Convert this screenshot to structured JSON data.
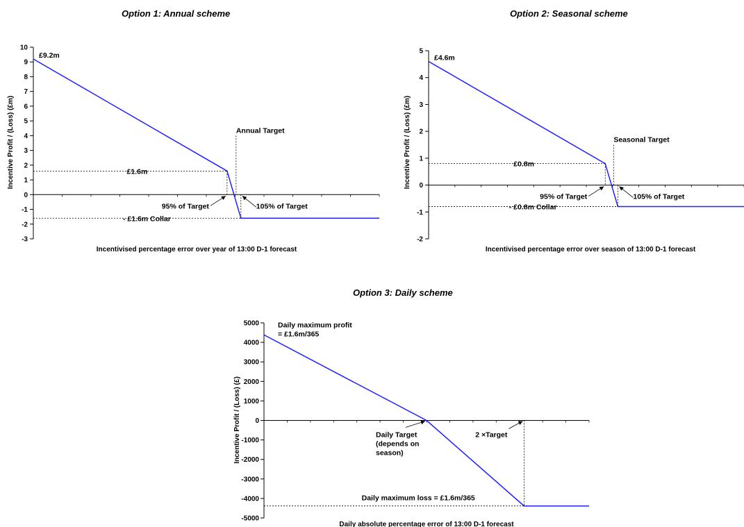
{
  "chart_data": [
    {
      "type": "line",
      "title": "Option 1: Annual scheme",
      "xlabel": "Incentivised percentage error over year of 13:00 D-1 forecast",
      "ylabel": "Incentive Profit / (Loss) (£m)",
      "ylim": [
        -3,
        10
      ],
      "yticks": [
        10,
        9,
        8,
        7,
        6,
        5,
        4,
        3,
        2,
        1,
        0,
        -1,
        -2,
        -3
      ],
      "series": [
        {
          "points": [
            [
              0,
              9.2
            ],
            [
              0.56,
              1.6
            ],
            [
              0.6,
              -1.6
            ],
            [
              1,
              -1.6
            ]
          ]
        }
      ],
      "annotations": {
        "max": "£9.2m",
        "level": "£1.6m",
        "collar": "- £1.6m Collar",
        "target": "Annual Target",
        "lower": "95% of Target",
        "upper": "105% of Target"
      }
    },
    {
      "type": "line",
      "title": "Option 2: Seasonal  scheme",
      "xlabel": "Incentivised percentage error over season of 13:00 D-1 forecast",
      "ylabel": "Incentive Profit / (Loss) (£m)",
      "ylim": [
        -2,
        5
      ],
      "yticks": [
        5,
        4,
        3,
        2,
        1,
        0,
        -1,
        -2
      ],
      "series": [
        {
          "points": [
            [
              0,
              4.6
            ],
            [
              0.56,
              0.8
            ],
            [
              0.6,
              -0.8
            ],
            [
              1,
              -0.8
            ]
          ]
        }
      ],
      "annotations": {
        "max": "£4.6m",
        "level": "£0.8m",
        "collar": "- £0.8m Collar",
        "target": "Seasonal Target",
        "lower": "95% of Target",
        "upper": "105% of Target"
      }
    },
    {
      "type": "line",
      "title": "Option 3: Daily scheme",
      "xlabel": "Daily absolute percentage error of 13:00 D-1 forecast",
      "ylabel": "Incentive Profit / (Loss) (£)",
      "ylim": [
        -5000,
        5000
      ],
      "yticks": [
        5000,
        4000,
        3000,
        2000,
        1000,
        0,
        -1000,
        -2000,
        -3000,
        -4000,
        -5000
      ],
      "series": [
        {
          "points": [
            [
              0,
              4384
            ],
            [
              0.5,
              0
            ],
            [
              0.8,
              -4384
            ],
            [
              1,
              -4384
            ]
          ]
        }
      ],
      "annotations": {
        "max_line1": "Daily maximum profit",
        "max_line2": "= £1.6m/365",
        "target_line1": "Daily Target",
        "target_line2": "(depends on",
        "target_line3": "season)",
        "double_target": "2 ×Target",
        "loss": "Daily maximum loss = £1.6m/365"
      }
    }
  ]
}
